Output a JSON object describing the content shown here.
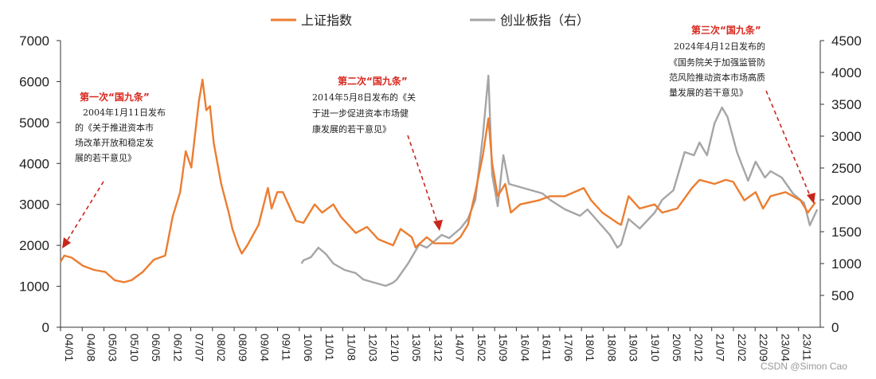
{
  "chart_data": {
    "type": "line",
    "title": "",
    "x_ticks": [
      "04/01",
      "04/08",
      "05/03",
      "05/10",
      "06/05",
      "06/12",
      "07/07",
      "08/02",
      "08/09",
      "09/04",
      "09/11",
      "10/06",
      "11/01",
      "11/08",
      "12/03",
      "12/10",
      "13/05",
      "13/12",
      "14/07",
      "15/02",
      "15/09",
      "16/04",
      "16/11",
      "17/06",
      "18/01",
      "18/08",
      "19/03",
      "19/10",
      "20/05",
      "20/12",
      "21/07",
      "22/02",
      "22/09",
      "23/04",
      "23/11"
    ],
    "y_left": {
      "min": 0,
      "max": 7000,
      "ticks": [
        0,
        1000,
        2000,
        3000,
        4000,
        5000,
        6000,
        7000
      ]
    },
    "y_right": {
      "min": 0,
      "max": 4500,
      "ticks": [
        0,
        500,
        1000,
        1500,
        2000,
        2500,
        3000,
        3500,
        4000,
        4500
      ]
    },
    "series": [
      {
        "name": "上证指数",
        "axis": "left",
        "color": "#ec7d30",
        "points": [
          [
            2004.0,
            1600
          ],
          [
            2004.1,
            1750
          ],
          [
            2004.3,
            1700
          ],
          [
            2004.6,
            1500
          ],
          [
            2004.9,
            1400
          ],
          [
            2005.2,
            1350
          ],
          [
            2005.45,
            1150
          ],
          [
            2005.7,
            1100
          ],
          [
            2005.9,
            1150
          ],
          [
            2006.2,
            1350
          ],
          [
            2006.5,
            1650
          ],
          [
            2006.8,
            1750
          ],
          [
            2007.0,
            2700
          ],
          [
            2007.2,
            3300
          ],
          [
            2007.35,
            4300
          ],
          [
            2007.5,
            3900
          ],
          [
            2007.7,
            5500
          ],
          [
            2007.8,
            6050
          ],
          [
            2007.9,
            5300
          ],
          [
            2008.0,
            5400
          ],
          [
            2008.1,
            4500
          ],
          [
            2008.3,
            3500
          ],
          [
            2008.5,
            2800
          ],
          [
            2008.6,
            2400
          ],
          [
            2008.75,
            2000
          ],
          [
            2008.85,
            1800
          ],
          [
            2009.0,
            2000
          ],
          [
            2009.3,
            2500
          ],
          [
            2009.55,
            3400
          ],
          [
            2009.65,
            2900
          ],
          [
            2009.8,
            3300
          ],
          [
            2009.95,
            3300
          ],
          [
            2010.05,
            3100
          ],
          [
            2010.3,
            2600
          ],
          [
            2010.5,
            2550
          ],
          [
            2010.8,
            3000
          ],
          [
            2011.0,
            2800
          ],
          [
            2011.3,
            3000
          ],
          [
            2011.5,
            2700
          ],
          [
            2011.9,
            2300
          ],
          [
            2012.2,
            2450
          ],
          [
            2012.5,
            2150
          ],
          [
            2012.9,
            2000
          ],
          [
            2013.1,
            2400
          ],
          [
            2013.4,
            2200
          ],
          [
            2013.5,
            1950
          ],
          [
            2013.8,
            2200
          ],
          [
            2014.0,
            2050
          ],
          [
            2014.5,
            2050
          ],
          [
            2014.7,
            2200
          ],
          [
            2014.9,
            2500
          ],
          [
            2015.1,
            3300
          ],
          [
            2015.3,
            4200
          ],
          [
            2015.45,
            5100
          ],
          [
            2015.55,
            4000
          ],
          [
            2015.7,
            3200
          ],
          [
            2015.9,
            3500
          ],
          [
            2016.05,
            2800
          ],
          [
            2016.3,
            3000
          ],
          [
            2016.8,
            3100
          ],
          [
            2017.1,
            3200
          ],
          [
            2017.5,
            3200
          ],
          [
            2018.0,
            3400
          ],
          [
            2018.2,
            3100
          ],
          [
            2018.5,
            2800
          ],
          [
            2018.9,
            2550
          ],
          [
            2019.0,
            2500
          ],
          [
            2019.2,
            3200
          ],
          [
            2019.5,
            2900
          ],
          [
            2019.9,
            3000
          ],
          [
            2020.1,
            2800
          ],
          [
            2020.5,
            2900
          ],
          [
            2020.9,
            3400
          ],
          [
            2021.1,
            3600
          ],
          [
            2021.5,
            3500
          ],
          [
            2021.8,
            3600
          ],
          [
            2022.0,
            3550
          ],
          [
            2022.3,
            3100
          ],
          [
            2022.6,
            3300
          ],
          [
            2022.8,
            2900
          ],
          [
            2023.0,
            3200
          ],
          [
            2023.4,
            3300
          ],
          [
            2023.8,
            3100
          ],
          [
            2024.0,
            2800
          ],
          [
            2024.2,
            3050
          ]
        ]
      },
      {
        "name": "创业板指（右）",
        "axis": "right",
        "color": "#a5a5a5",
        "points": [
          [
            2010.45,
            1000
          ],
          [
            2010.5,
            1050
          ],
          [
            2010.7,
            1100
          ],
          [
            2010.9,
            1250
          ],
          [
            2011.1,
            1150
          ],
          [
            2011.3,
            1000
          ],
          [
            2011.6,
            900
          ],
          [
            2011.9,
            850
          ],
          [
            2012.1,
            750
          ],
          [
            2012.4,
            700
          ],
          [
            2012.7,
            650
          ],
          [
            2012.9,
            700
          ],
          [
            2013.0,
            750
          ],
          [
            2013.3,
            1000
          ],
          [
            2013.6,
            1300
          ],
          [
            2013.8,
            1250
          ],
          [
            2014.0,
            1350
          ],
          [
            2014.2,
            1450
          ],
          [
            2014.4,
            1400
          ],
          [
            2014.7,
            1550
          ],
          [
            2014.9,
            1700
          ],
          [
            2015.1,
            2000
          ],
          [
            2015.3,
            3000
          ],
          [
            2015.45,
            3950
          ],
          [
            2015.55,
            2400
          ],
          [
            2015.7,
            1900
          ],
          [
            2015.85,
            2700
          ],
          [
            2016.0,
            2250
          ],
          [
            2016.3,
            2200
          ],
          [
            2016.6,
            2150
          ],
          [
            2016.9,
            2100
          ],
          [
            2017.1,
            2000
          ],
          [
            2017.5,
            1850
          ],
          [
            2017.9,
            1750
          ],
          [
            2018.1,
            1850
          ],
          [
            2018.4,
            1650
          ],
          [
            2018.7,
            1450
          ],
          [
            2018.9,
            1250
          ],
          [
            2019.0,
            1300
          ],
          [
            2019.2,
            1700
          ],
          [
            2019.5,
            1550
          ],
          [
            2019.9,
            1800
          ],
          [
            2020.1,
            2000
          ],
          [
            2020.4,
            2150
          ],
          [
            2020.7,
            2750
          ],
          [
            2020.95,
            2700
          ],
          [
            2021.1,
            2900
          ],
          [
            2021.3,
            2700
          ],
          [
            2021.5,
            3200
          ],
          [
            2021.7,
            3450
          ],
          [
            2021.85,
            3300
          ],
          [
            2022.1,
            2750
          ],
          [
            2022.4,
            2300
          ],
          [
            2022.6,
            2600
          ],
          [
            2022.85,
            2350
          ],
          [
            2023.0,
            2450
          ],
          [
            2023.3,
            2350
          ],
          [
            2023.6,
            2100
          ],
          [
            2023.9,
            1950
          ],
          [
            2024.05,
            1600
          ],
          [
            2024.25,
            1850
          ]
        ]
      }
    ],
    "legend": {
      "left": "上证指数",
      "right": "创业板指（右）",
      "placement": "top"
    },
    "annotations": [
      {
        "title": "第一次“国九条”",
        "lines": [
          "2004年1月11日发布",
          "的《关于推进资本市",
          "场改革开放和稳定发",
          "展的若干意见》"
        ]
      },
      {
        "title": "第二次“国九条”",
        "lines": [
          "2014年5月8日发布的《关",
          "于进一步促进资本市场健",
          "康发展的若干意见》"
        ]
      },
      {
        "title": "第三次“国九条”",
        "lines": [
          "2024年4月12日发布的",
          "《国务院关于加强监管防",
          "范风险推动资本市场高质",
          "量发展的若干意见》"
        ]
      }
    ],
    "watermark": "CSDN @Simon Cao"
  }
}
